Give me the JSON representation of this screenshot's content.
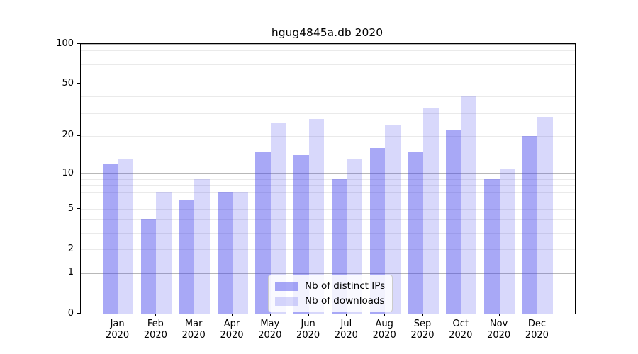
{
  "chart_data": {
    "type": "bar",
    "title": "hgug4845a.db 2020",
    "categories": [
      "Jan",
      "Feb",
      "Mar",
      "Apr",
      "May",
      "Jun",
      "Jul",
      "Aug",
      "Sep",
      "Oct",
      "Nov",
      "Dec"
    ],
    "year_label": "2020",
    "series": [
      {
        "name": "Nb of distinct IPs",
        "values": [
          12,
          4,
          6,
          7,
          15,
          14,
          9,
          16,
          15,
          22,
          9,
          20
        ],
        "fill": "rgba(62,62,235,0.45)",
        "approx_hex": "#a8a8f6"
      },
      {
        "name": "Nb of downloads",
        "values": [
          13,
          7,
          9,
          7,
          25,
          27,
          13,
          24,
          33,
          40,
          11,
          28
        ],
        "fill": "rgba(62,62,235,0.2)",
        "approx_hex": "#d8d8fb"
      }
    ],
    "xlabel": "",
    "ylabel": "",
    "yscale": "log1p",
    "ylim": [
      0,
      100
    ],
    "yticks": [
      0,
      1,
      2,
      5,
      10,
      20,
      50,
      100
    ],
    "grid": {
      "on": true,
      "major_values": [
        1,
        10,
        100
      ],
      "minor_values": [
        2,
        3,
        4,
        5,
        6,
        7,
        8,
        9,
        20,
        30,
        40,
        50,
        60,
        70,
        80,
        90
      ],
      "major_color": "#b8b8b8",
      "minor_color": "#eaeaea"
    },
    "legend_position": "lower center"
  }
}
